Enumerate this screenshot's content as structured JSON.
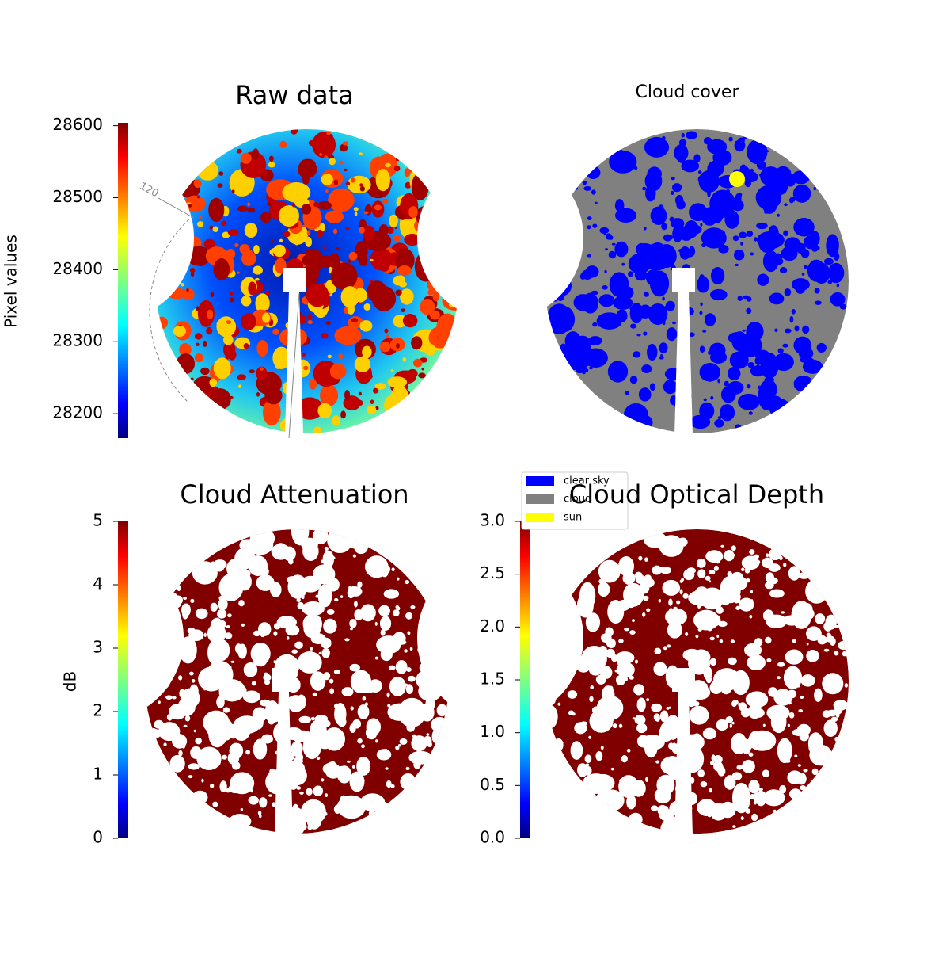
{
  "chart_data": [
    {
      "type": "image",
      "title": "Raw data",
      "colormap": "jet",
      "ylabel": "Pixel values",
      "ylim": [
        28166,
        28604
      ],
      "yticks": [
        28200,
        28300,
        28400,
        28500,
        28600
      ],
      "annotation": "120"
    },
    {
      "type": "categorical_image",
      "title": "Cloud cover",
      "series": [
        {
          "name": "clear sky",
          "color": "#0000ff"
        },
        {
          "name": "cloud",
          "color": "#808080"
        },
        {
          "name": "sun",
          "color": "#ffff00"
        }
      ]
    },
    {
      "type": "image",
      "title": "Cloud Attenuation",
      "colormap": "jet",
      "ylabel": "dB",
      "ylim": [
        0,
        5
      ],
      "yticks": [
        0,
        1,
        2,
        3,
        4,
        5
      ]
    },
    {
      "type": "image",
      "title": "Cloud Optical Depth",
      "colormap": "jet",
      "ylim": [
        0,
        3
      ],
      "yticks": [
        {
          "value": 0,
          "label": "0.0"
        },
        0.5,
        {
          "value": 1,
          "label": "1.0"
        },
        1.5,
        {
          "value": 2,
          "label": "2.0"
        },
        2.5,
        {
          "value": 3,
          "label": "3.0"
        }
      ]
    }
  ]
}
